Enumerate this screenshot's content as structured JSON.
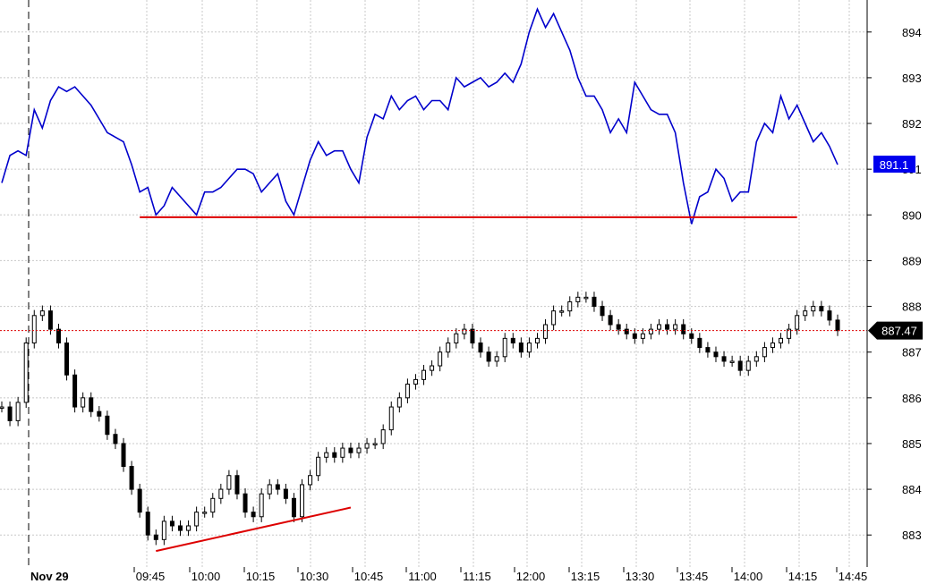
{
  "chart_data": {
    "type": "line",
    "y_axis": {
      "range": [
        882.3,
        894.7
      ],
      "ticks": [
        "883",
        "884",
        "885",
        "886",
        "887",
        "888",
        "889",
        "890",
        "891",
        "892",
        "893",
        "894"
      ],
      "grid": true
    },
    "x_axis": {
      "date_label": "Nov 29",
      "ticks": [
        "09:45",
        "10:00",
        "10:15",
        "10:30",
        "10:45",
        "11:00",
        "11:15",
        "12:00",
        "13:15",
        "13:30",
        "13:45",
        "14:00",
        "14:15",
        "14:45"
      ],
      "grid": true
    },
    "series": [
      {
        "style": "line",
        "color": "#0000cc",
        "last_value_label": "891.1",
        "values": [
          890.7,
          891.3,
          891.4,
          891.3,
          892.3,
          891.9,
          892.5,
          892.8,
          892.7,
          892.8,
          892.6,
          892.4,
          892.1,
          891.8,
          891.7,
          891.6,
          891.1,
          890.5,
          890.6,
          890.0,
          890.2,
          890.6,
          890.4,
          890.2,
          890.0,
          890.5,
          890.5,
          890.6,
          890.8,
          891.0,
          891.0,
          890.9,
          890.5,
          890.7,
          890.9,
          890.3,
          890.0,
          890.6,
          891.2,
          891.6,
          891.3,
          891.4,
          891.4,
          891.0,
          890.7,
          891.7,
          892.2,
          892.1,
          892.6,
          892.3,
          892.5,
          892.6,
          892.3,
          892.5,
          892.5,
          892.3,
          893.0,
          892.8,
          892.9,
          893.0,
          892.8,
          892.9,
          893.1,
          892.9,
          893.3,
          894.0,
          894.5,
          894.1,
          894.4,
          894.0,
          893.6,
          893.0,
          892.6,
          892.6,
          892.3,
          891.8,
          892.1,
          891.8,
          892.9,
          892.6,
          892.3,
          892.2,
          892.2,
          891.8,
          890.7,
          889.8,
          890.4,
          890.5,
          891.0,
          890.8,
          890.3,
          890.5,
          890.5,
          891.6,
          892.0,
          891.8,
          892.6,
          892.1,
          892.4,
          892.0,
          891.6,
          891.8,
          891.5,
          891.1
        ]
      },
      {
        "style": "ohlc",
        "color": "#000000",
        "last_value_label": "887.47",
        "values": [
          885.8,
          885.5,
          885.9,
          887.2,
          887.8,
          887.9,
          887.5,
          887.2,
          886.5,
          885.8,
          886.0,
          885.7,
          885.6,
          885.2,
          885.0,
          884.5,
          884.0,
          883.5,
          883.0,
          882.9,
          883.3,
          883.2,
          883.1,
          883.2,
          883.5,
          883.5,
          883.8,
          884.0,
          884.3,
          883.9,
          883.5,
          883.4,
          883.9,
          884.1,
          884.0,
          883.8,
          883.4,
          884.1,
          884.3,
          884.7,
          884.8,
          884.7,
          884.9,
          884.8,
          884.9,
          885.0,
          885.0,
          885.3,
          885.8,
          886.0,
          886.3,
          886.4,
          886.6,
          886.7,
          887.0,
          887.2,
          887.4,
          887.5,
          887.2,
          887.0,
          886.8,
          886.9,
          887.3,
          887.2,
          887.0,
          887.2,
          887.3,
          887.6,
          887.9,
          887.9,
          888.1,
          888.2,
          888.2,
          888.0,
          887.8,
          887.6,
          887.5,
          887.4,
          887.3,
          887.4,
          887.5,
          887.6,
          887.5,
          887.6,
          887.4,
          887.3,
          887.1,
          887.0,
          886.9,
          886.8,
          886.8,
          886.6,
          886.8,
          886.9,
          887.1,
          887.2,
          887.3,
          887.5,
          887.8,
          887.9,
          888.0,
          887.9,
          887.7,
          887.47
        ]
      }
    ],
    "annotations": [
      {
        "kind": "horizontal_line",
        "color": "#dd0000",
        "style": "solid",
        "from_index": 17,
        "to_index": 98,
        "y": 889.95
      },
      {
        "kind": "horizontal_line",
        "color": "#dd0000",
        "style": "dotted",
        "y": 887.47
      },
      {
        "kind": "trend_line",
        "color": "#dd0000",
        "from": [
          19,
          882.65
        ],
        "to": [
          43,
          883.6
        ]
      }
    ]
  }
}
